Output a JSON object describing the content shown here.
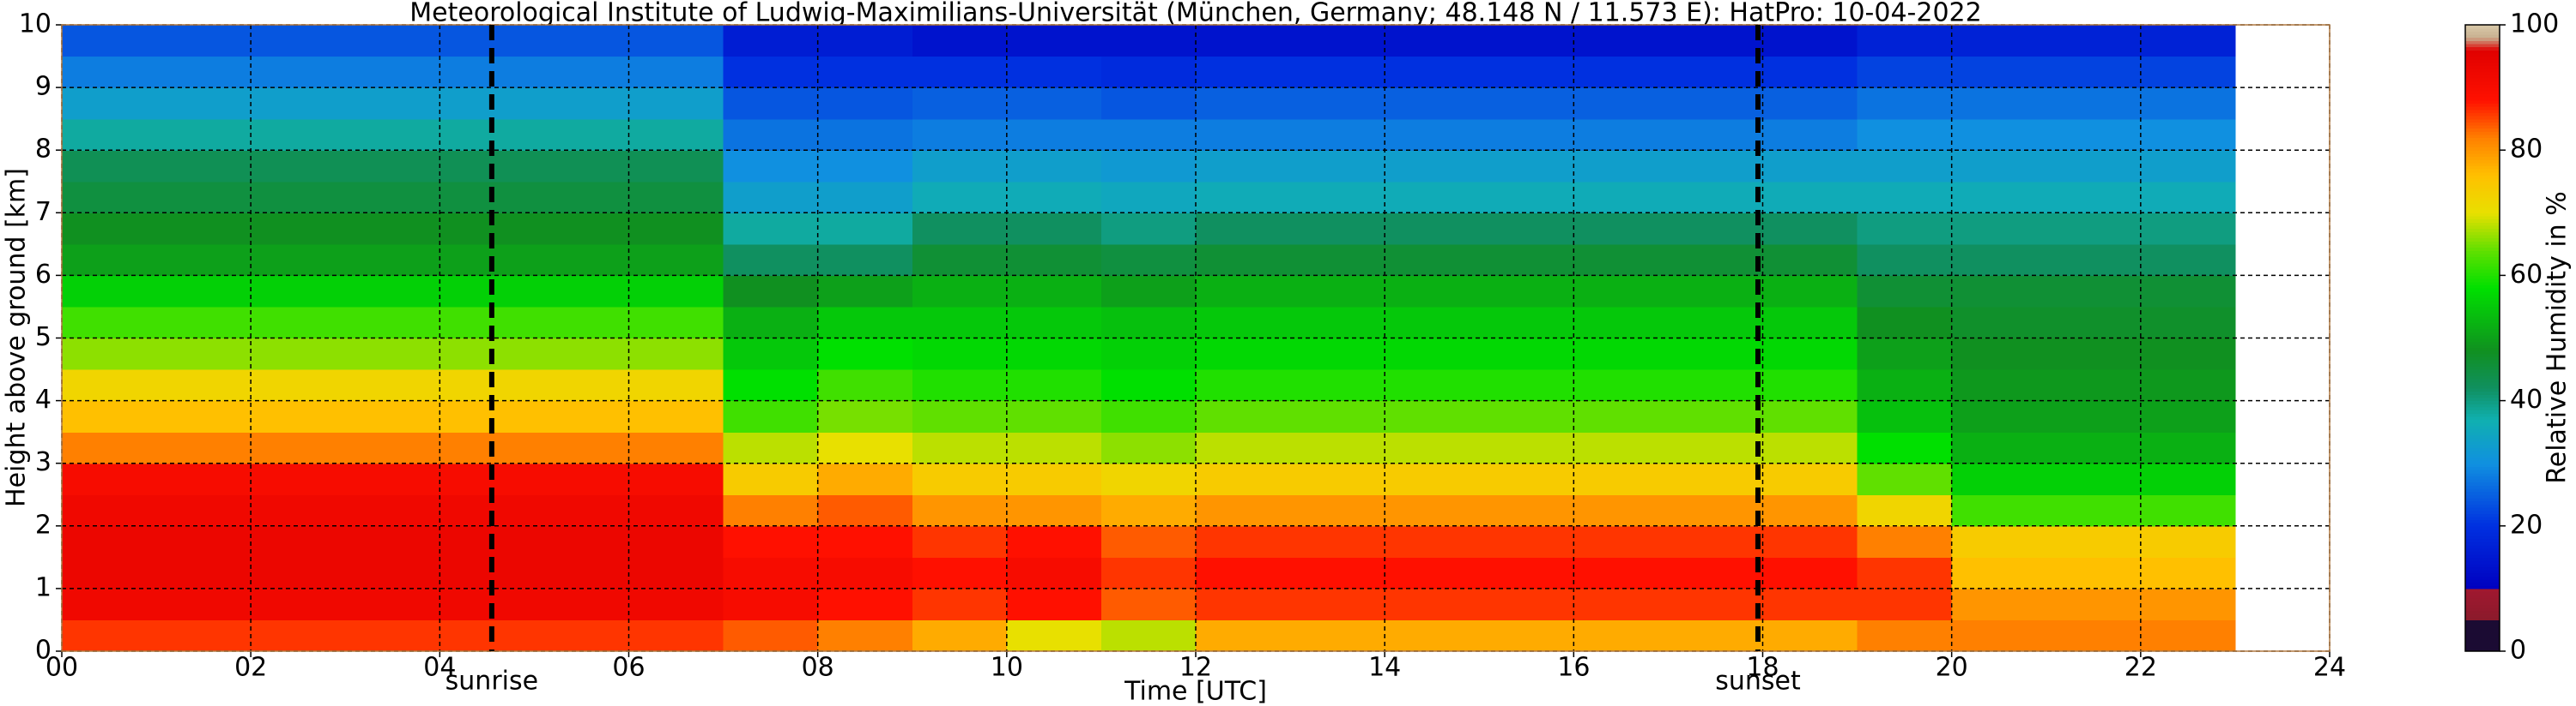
{
  "chart_data": {
    "type": "heatmap",
    "title": "Meteorological Institute of Ludwig-Maximilians-Universität (München, Germany; 48.148 N / 11.573 E):    HatPro: 10-04-2022",
    "xlabel": "Time [UTC]",
    "ylabel": "Height above ground [km]",
    "x": [
      0,
      1,
      2,
      3,
      4,
      5,
      6,
      7,
      8,
      9,
      10,
      11,
      12,
      13,
      14,
      15,
      16,
      17,
      18,
      19,
      20,
      21,
      22,
      23
    ],
    "y": [
      0,
      0.5,
      1,
      1.5,
      2,
      2.5,
      3,
      3.5,
      4,
      4.5,
      5,
      5.5,
      6,
      6.5,
      7,
      7.5,
      8,
      8.5,
      9,
      9.5,
      10
    ],
    "values": [
      [
        86,
        86,
        86,
        86,
        86,
        86,
        86,
        84,
        82,
        78,
        70,
        68,
        78,
        78,
        78,
        78,
        78,
        78,
        78,
        82,
        82,
        82,
        82
      ],
      [
        92,
        92,
        92,
        92,
        92,
        92,
        92,
        90,
        88,
        86,
        88,
        84,
        86,
        86,
        86,
        86,
        86,
        86,
        86,
        86,
        80,
        80,
        80
      ],
      [
        93,
        93,
        93,
        93,
        93,
        93,
        93,
        90,
        90,
        88,
        90,
        86,
        88,
        88,
        88,
        88,
        88,
        88,
        88,
        86,
        76,
        76,
        76
      ],
      [
        93,
        93,
        93,
        93,
        93,
        93,
        93,
        88,
        88,
        86,
        88,
        84,
        86,
        86,
        86,
        86,
        86,
        86,
        86,
        82,
        74,
        74,
        74
      ],
      [
        92,
        92,
        92,
        92,
        92,
        92,
        92,
        82,
        84,
        80,
        80,
        78,
        80,
        80,
        80,
        80,
        80,
        80,
        80,
        72,
        62,
        62,
        62
      ],
      [
        90,
        90,
        90,
        90,
        90,
        90,
        90,
        74,
        78,
        74,
        74,
        72,
        74,
        74,
        74,
        74,
        74,
        74,
        74,
        64,
        56,
        56,
        56
      ],
      [
        82,
        82,
        82,
        82,
        82,
        82,
        82,
        68,
        70,
        68,
        68,
        66,
        68,
        68,
        68,
        68,
        68,
        68,
        68,
        58,
        52,
        52,
        52
      ],
      [
        76,
        76,
        76,
        76,
        76,
        76,
        76,
        62,
        65,
        64,
        64,
        62,
        64,
        64,
        64,
        64,
        64,
        64,
        64,
        54,
        50,
        50,
        50
      ],
      [
        72,
        72,
        72,
        72,
        72,
        72,
        72,
        58,
        62,
        60,
        60,
        58,
        60,
        60,
        60,
        60,
        60,
        60,
        60,
        52,
        49,
        49,
        49
      ],
      [
        66,
        66,
        66,
        66,
        66,
        66,
        66,
        55,
        58,
        57,
        57,
        56,
        57,
        57,
        57,
        57,
        57,
        57,
        57,
        50,
        48,
        48,
        48
      ],
      [
        62,
        62,
        62,
        62,
        62,
        62,
        62,
        52,
        55,
        55,
        55,
        54,
        55,
        55,
        55,
        55,
        55,
        55,
        55,
        48,
        47,
        47,
        47
      ],
      [
        56,
        56,
        56,
        56,
        56,
        56,
        56,
        48,
        50,
        52,
        52,
        50,
        52,
        52,
        52,
        52,
        52,
        52,
        52,
        46,
        46,
        46,
        46
      ],
      [
        50,
        50,
        50,
        50,
        50,
        50,
        50,
        42,
        42,
        46,
        46,
        45,
        46,
        46,
        46,
        46,
        46,
        46,
        46,
        42,
        42,
        42,
        42
      ],
      [
        48,
        48,
        48,
        48,
        48,
        48,
        48,
        38,
        38,
        42,
        42,
        40,
        42,
        42,
        42,
        42,
        42,
        42,
        42,
        40,
        40,
        40,
        40
      ],
      [
        45,
        45,
        45,
        45,
        45,
        45,
        45,
        33,
        33,
        36,
        36,
        35,
        36,
        36,
        36,
        36,
        36,
        36,
        36,
        36,
        36,
        36,
        36
      ],
      [
        43,
        43,
        43,
        43,
        43,
        43,
        43,
        30,
        30,
        33,
        33,
        32,
        33,
        33,
        33,
        33,
        33,
        33,
        33,
        33,
        33,
        33,
        33
      ],
      [
        38,
        38,
        38,
        38,
        38,
        38,
        38,
        27,
        27,
        28,
        28,
        28,
        28,
        28,
        28,
        28,
        28,
        28,
        28,
        30,
        30,
        30,
        30
      ],
      [
        33,
        33,
        33,
        33,
        33,
        33,
        33,
        24,
        24,
        25,
        25,
        24,
        25,
        25,
        25,
        25,
        25,
        25,
        25,
        27,
        27,
        27,
        27
      ],
      [
        28,
        28,
        28,
        28,
        28,
        28,
        28,
        20,
        20,
        20,
        20,
        19,
        20,
        20,
        20,
        20,
        20,
        20,
        20,
        22,
        22,
        22,
        22
      ],
      [
        24,
        24,
        24,
        24,
        24,
        24,
        24,
        16,
        16,
        14,
        14,
        14,
        14,
        14,
        14,
        14,
        14,
        14,
        14,
        17,
        17,
        17,
        17
      ]
    ],
    "xlim": [
      0,
      24
    ],
    "ylim": [
      0,
      10
    ],
    "xticks": [
      {
        "value": 0,
        "label": "00"
      },
      {
        "value": 2,
        "label": "02"
      },
      {
        "value": 4,
        "label": "04"
      },
      {
        "value": 6,
        "label": "06"
      },
      {
        "value": 8,
        "label": "08"
      },
      10,
      12,
      14,
      16,
      18,
      20,
      22,
      24
    ],
    "yticks": [
      0,
      1,
      2,
      3,
      4,
      5,
      6,
      7,
      8,
      9,
      10
    ],
    "grid": true,
    "annotations": [
      {
        "text": "sunrise",
        "x": 4.55
      },
      {
        "text": "sunset",
        "x": 17.95
      }
    ],
    "colorbar": {
      "label": "Relative Humidity in %",
      "clim": [
        0,
        100
      ],
      "ticks": [
        0,
        20,
        40,
        60,
        80,
        100
      ]
    },
    "colormap": [
      [
        0,
        "#1b0b33"
      ],
      [
        4.9,
        "#1b0b33"
      ],
      [
        5,
        "#8b1a2b"
      ],
      [
        9.9,
        "#a01830"
      ],
      [
        10,
        "#0000c0"
      ],
      [
        20,
        "#0030e0"
      ],
      [
        30,
        "#1090e0"
      ],
      [
        37,
        "#10b0b0"
      ],
      [
        42,
        "#109060"
      ],
      [
        48,
        "#109020"
      ],
      [
        58,
        "#00e000"
      ],
      [
        64,
        "#60e000"
      ],
      [
        70,
        "#e8e000"
      ],
      [
        76,
        "#ffc000"
      ],
      [
        82,
        "#ff8000"
      ],
      [
        88,
        "#ff1000"
      ],
      [
        96,
        "#e00000"
      ],
      [
        98,
        "#c8b090"
      ],
      [
        100,
        "#d8c8a8"
      ]
    ]
  }
}
